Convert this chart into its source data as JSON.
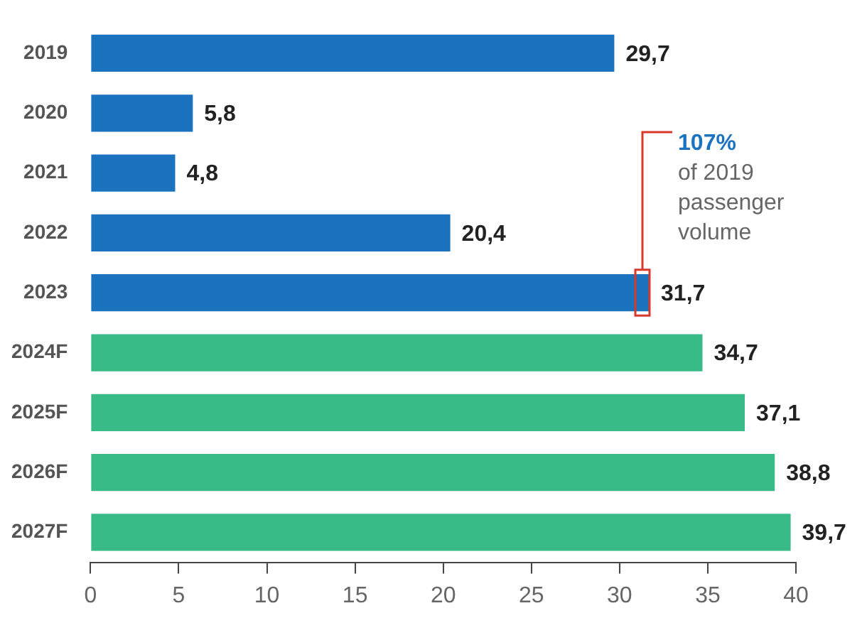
{
  "chart_data": {
    "type": "bar",
    "orientation": "horizontal",
    "categories": [
      "2019",
      "2020",
      "2021",
      "2022",
      "2023",
      "2024F",
      "2025F",
      "2026F",
      "2027F"
    ],
    "values": [
      29.7,
      5.8,
      4.8,
      20.4,
      31.7,
      34.7,
      37.1,
      38.8,
      39.7
    ],
    "colors": [
      "#1b73c0",
      "#1b73c0",
      "#1b73c0",
      "#1b73c0",
      "#1b73c0",
      "#38bb86",
      "#38bb86",
      "#38bb86",
      "#38bb86"
    ],
    "value_labels": [
      "29,7",
      "5,8",
      "4,8",
      "20,4",
      "31,7",
      "34,7",
      "37,1",
      "38,8",
      "39,7"
    ],
    "xlim": [
      0,
      40
    ],
    "xticks": [
      0,
      5,
      10,
      15,
      20,
      25,
      30,
      35,
      40
    ],
    "annotations": [
      {
        "text": "107% of 2019 passenger volume",
        "x": 31.7,
        "y": "2023"
      }
    ],
    "grid": false,
    "legend": false
  }
}
